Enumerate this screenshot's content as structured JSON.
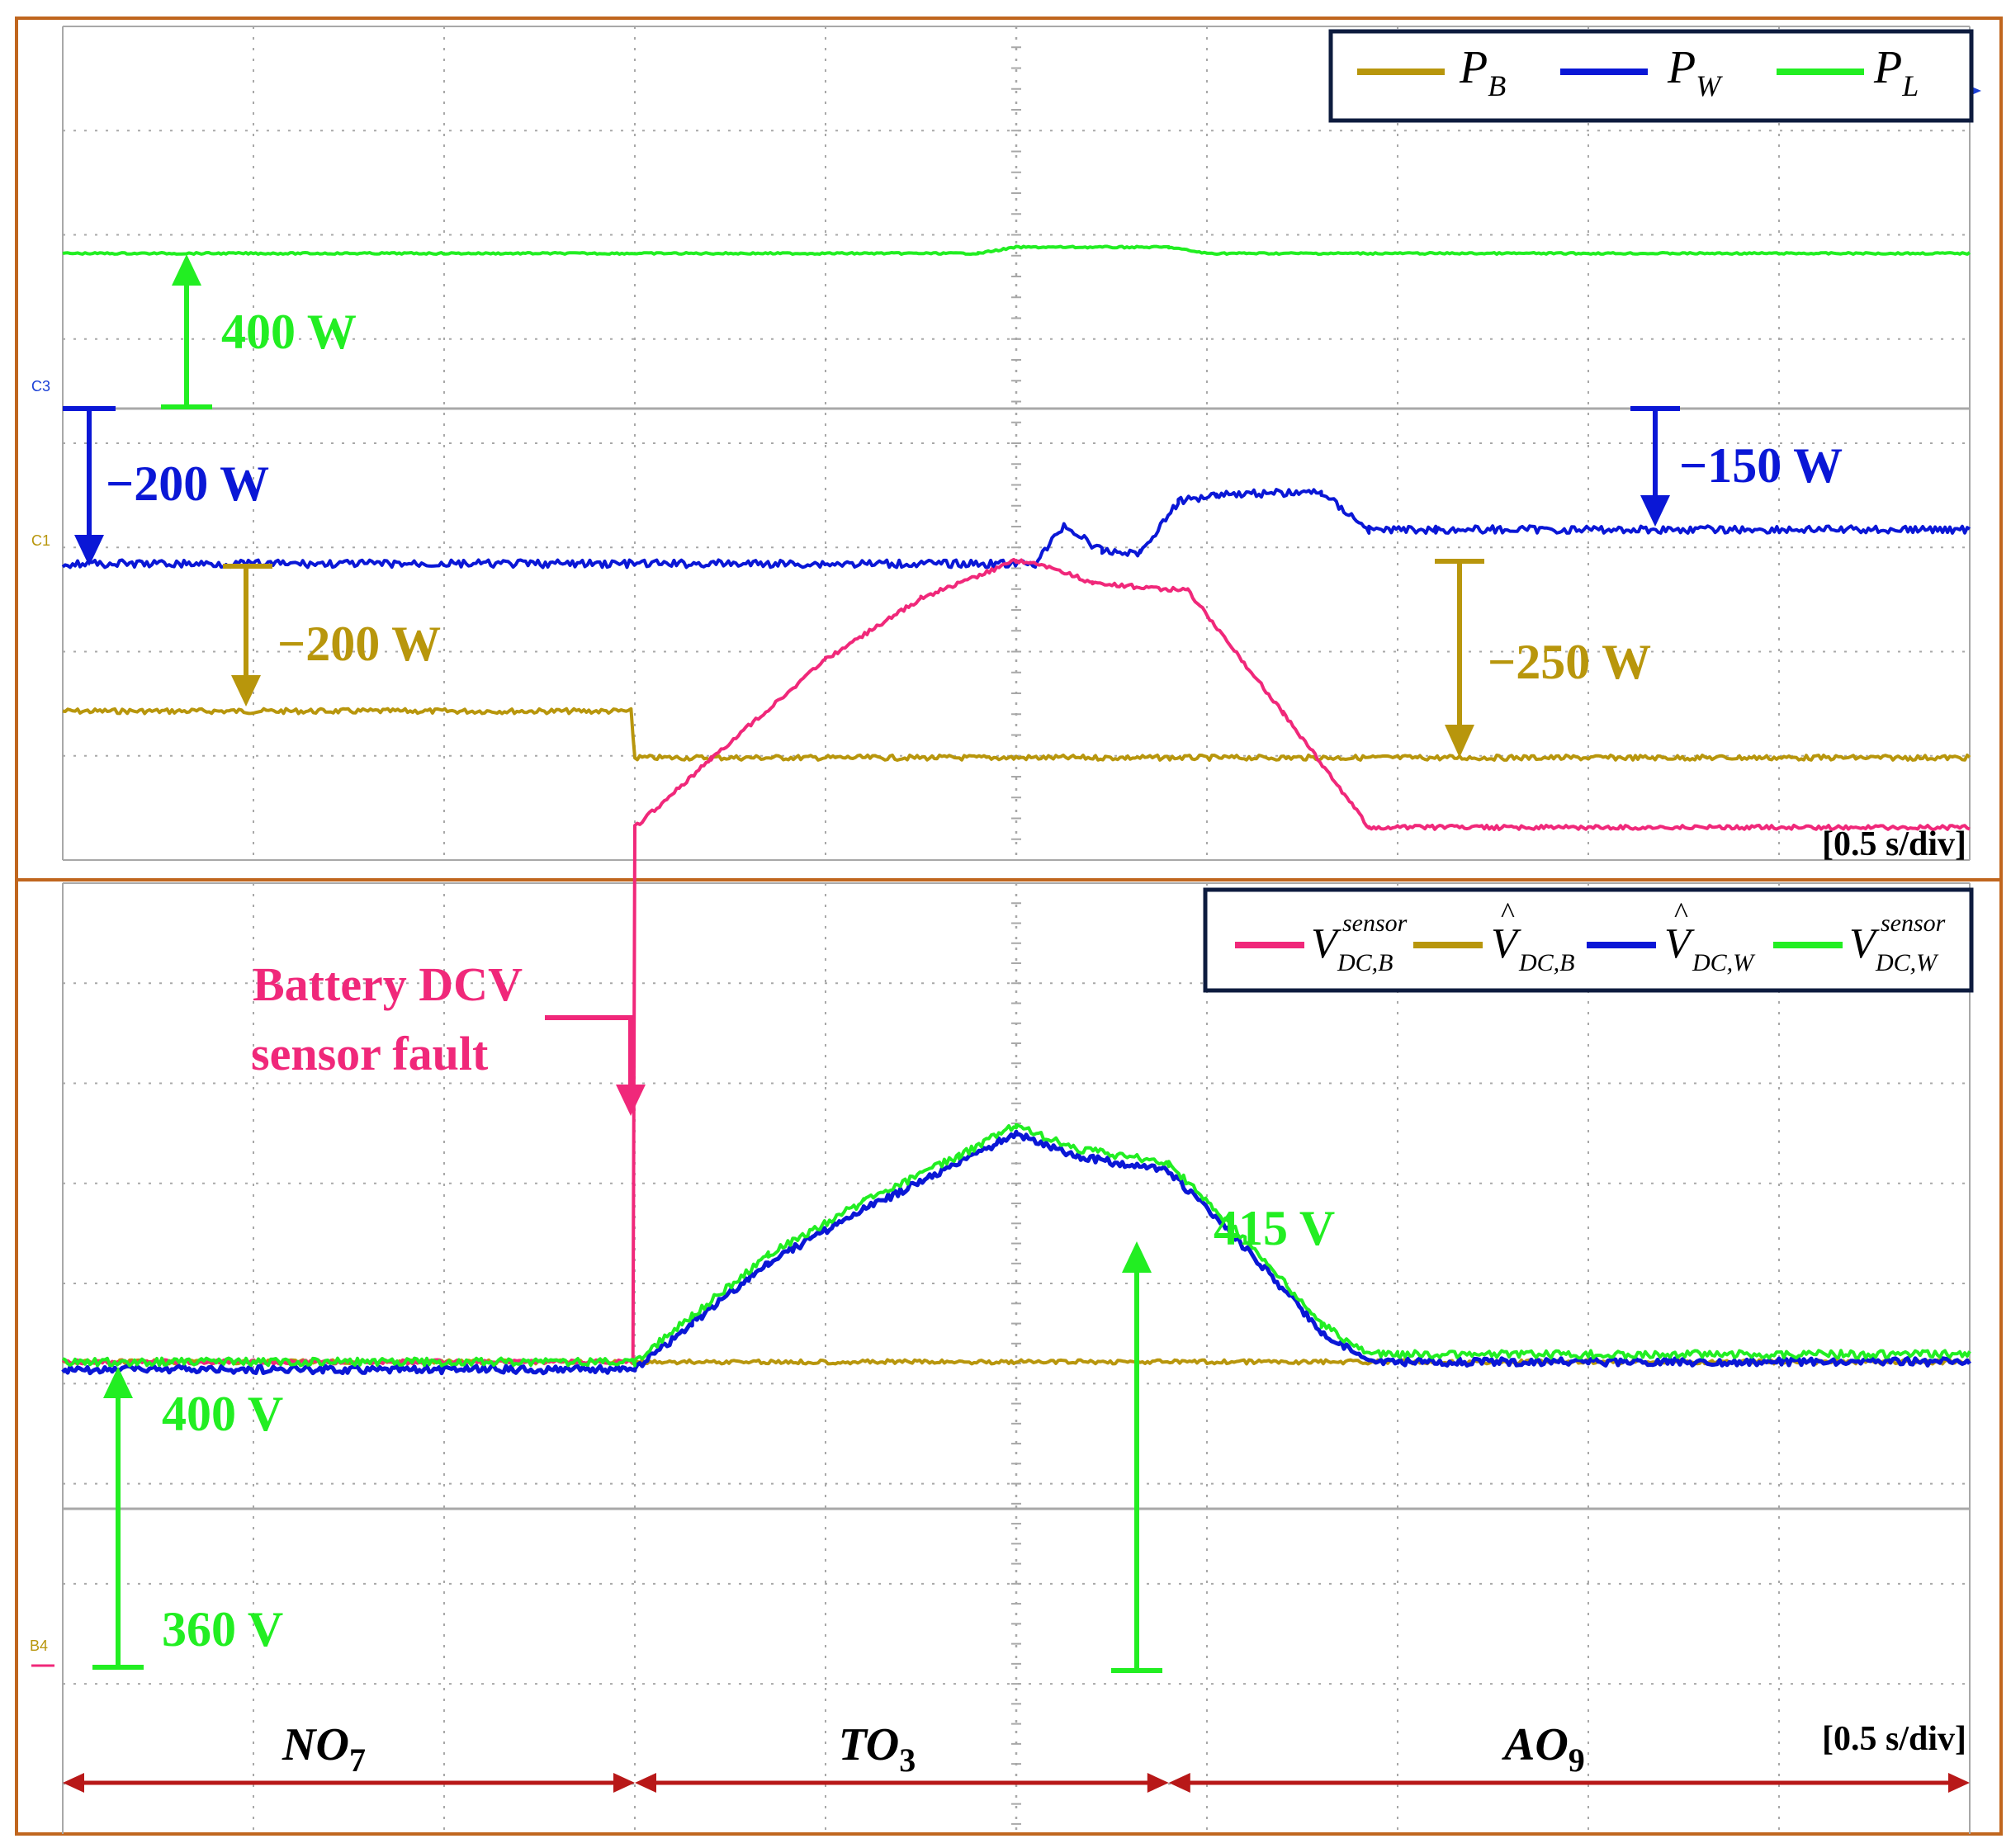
{
  "chart_data": [
    {
      "type": "line",
      "panel": "top",
      "title": "",
      "time_scale_label": "[0.5 s/div]",
      "x_unit_per_division": 0.5,
      "x_range_div": [
        0,
        10
      ],
      "grid": true,
      "legend_position": "top-right",
      "legend": [
        {
          "main": "P",
          "sub": "B",
          "color": "#b8960c"
        },
        {
          "main": "P",
          "sub": "W",
          "color": "#0a17d6"
        },
        {
          "main": "P",
          "sub": "L",
          "color": "#22ee22"
        }
      ],
      "channel_markers": [
        "C3",
        "C1"
      ],
      "series": [
        {
          "name": "P_L",
          "color": "#22ee22",
          "points": [
            [
              0,
              1.0
            ],
            [
              4.8,
              1.0
            ],
            [
              5.0,
              1.04
            ],
            [
              5.8,
              1.04
            ],
            [
              6.0,
              1.0
            ],
            [
              10,
              1.0
            ]
          ]
        },
        {
          "name": "P_W",
          "color": "#0a17d6",
          "points": [
            [
              0,
              -1.0
            ],
            [
              5.1,
              -1.0
            ],
            [
              5.25,
              -0.75
            ],
            [
              5.45,
              -0.92
            ],
            [
              5.65,
              -0.93
            ],
            [
              5.85,
              -0.6
            ],
            [
              6.05,
              -0.55
            ],
            [
              6.6,
              -0.54
            ],
            [
              6.85,
              -0.78
            ],
            [
              7.2,
              -0.78
            ],
            [
              10,
              -0.78
            ]
          ]
        },
        {
          "name": "P_B",
          "color": "#b8960c",
          "points": [
            [
              0,
              -1.95
            ],
            [
              2.98,
              -1.95
            ],
            [
              3.0,
              -2.25
            ],
            [
              10,
              -2.25
            ]
          ]
        }
      ],
      "annotations": [
        {
          "text": "400 W",
          "color": "#22ee22"
        },
        {
          "text": "−200 W",
          "color": "#0a17d6"
        },
        {
          "text": "−200 W",
          "color": "#b8960c"
        },
        {
          "text": "−150 W",
          "color": "#0a17d6"
        },
        {
          "text": "−250 W",
          "color": "#b8960c"
        }
      ]
    },
    {
      "type": "line",
      "panel": "bottom",
      "title": "",
      "time_scale_label": "[0.5 s/div]",
      "x_unit_per_division": 0.5,
      "x_range_div": [
        0,
        10
      ],
      "grid": true,
      "legend_position": "top-right",
      "legend": [
        {
          "main": "V",
          "sup": "sensor",
          "sub": "DC,B",
          "hat": false,
          "color": "#f0287a"
        },
        {
          "main": "V",
          "sup": "",
          "sub": "DC,B",
          "hat": true,
          "color": "#b8960c"
        },
        {
          "main": "V",
          "sup": "",
          "sub": "DC,W",
          "hat": true,
          "color": "#0a17d6"
        },
        {
          "main": "V",
          "sup": "sensor",
          "sub": "DC,W",
          "hat": false,
          "color": "#22ee22"
        }
      ],
      "series": [
        {
          "name": "V_DC,B^sensor",
          "color": "#f0287a",
          "points": [
            [
              0,
              400
            ],
            [
              2.98,
              400
            ],
            [
              2.99,
              400
            ],
            [
              3.0,
              470
            ],
            [
              3.4,
              479
            ],
            [
              4.0,
              492
            ],
            [
              4.5,
              500
            ],
            [
              5.0,
              505
            ],
            [
              5.2,
              504
            ],
            [
              5.4,
              502
            ],
            [
              5.9,
              501
            ],
            [
              6.4,
              485
            ],
            [
              6.85,
              470
            ],
            [
              7.0,
              470
            ],
            [
              10,
              470
            ]
          ]
        },
        {
          "name": "V_DC,B_hat",
          "color": "#b8960c",
          "points": [
            [
              0,
              400
            ],
            [
              10,
              400
            ]
          ]
        },
        {
          "name": "V_DC,W_hat",
          "color": "#0a17d6",
          "points": [
            [
              0,
              399
            ],
            [
              3.0,
              399
            ],
            [
              3.3,
              405
            ],
            [
              3.7,
              413
            ],
            [
              4.2,
              420
            ],
            [
              4.7,
              426
            ],
            [
              5.0,
              430
            ],
            [
              5.3,
              427
            ],
            [
              5.8,
              425
            ],
            [
              6.2,
              415
            ],
            [
              6.6,
              404
            ],
            [
              6.85,
              400
            ],
            [
              7.0,
              400
            ],
            [
              10,
              400
            ]
          ]
        },
        {
          "name": "V_DC,W^sensor",
          "color": "#22ee22",
          "points": [
            [
              0,
              400
            ],
            [
              3.0,
              400
            ],
            [
              3.3,
              406
            ],
            [
              3.7,
              414
            ],
            [
              4.2,
              421
            ],
            [
              4.7,
              427
            ],
            [
              5.0,
              431
            ],
            [
              5.3,
              428
            ],
            [
              5.8,
              426
            ],
            [
              6.2,
              416
            ],
            [
              6.6,
              405
            ],
            [
              6.85,
              401
            ],
            [
              7.0,
              401
            ],
            [
              10,
              401
            ]
          ]
        }
      ],
      "annotations": [
        {
          "text": "Battery DCV",
          "color": "#f0287a"
        },
        {
          "text": "sensor fault",
          "color": "#f0287a"
        },
        {
          "text": "415 V",
          "color": "#22ee22"
        },
        {
          "text": "400 V",
          "color": "#22ee22"
        },
        {
          "text": "360 V",
          "color": "#22ee22"
        }
      ],
      "modes": [
        {
          "label": "NO",
          "sub": "7",
          "start_div": 0,
          "end_div": 3.0
        },
        {
          "label": "TO",
          "sub": "3",
          "start_div": 3.0,
          "end_div": 5.8
        },
        {
          "label": "AO",
          "sub": "9",
          "start_div": 5.8,
          "end_div": 10
        }
      ]
    }
  ],
  "colors": {
    "frame": "#c0661e",
    "grid": "#a8a8a8",
    "mode_arrow": "#b81818",
    "legend_border": "#0d1b3e"
  }
}
